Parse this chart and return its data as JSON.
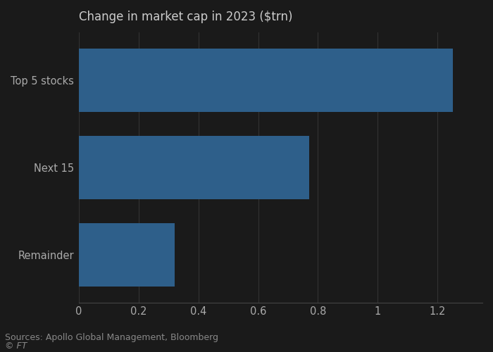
{
  "title": "Change in market cap in 2023 ($trn)",
  "categories": [
    "Top 5 stocks",
    "Next 15",
    "Remainder"
  ],
  "values": [
    1.25,
    0.77,
    0.32
  ],
  "bar_color": "#2e5f8a",
  "xlim": [
    0,
    1.35
  ],
  "xticks": [
    0,
    0.2,
    0.4,
    0.6,
    0.8,
    1.0,
    1.2
  ],
  "source_text": "Sources: Apollo Global Management, Bloomberg",
  "ft_text": "© FT",
  "background_color": "#1a1a1a",
  "bar_height": 0.72,
  "grid_color": "#333333",
  "spine_color": "#444444",
  "label_fontsize": 10.5,
  "title_fontsize": 12,
  "source_fontsize": 9,
  "tick_label_color": "#aaaaaa",
  "title_color": "#cccccc",
  "source_color": "#888888"
}
